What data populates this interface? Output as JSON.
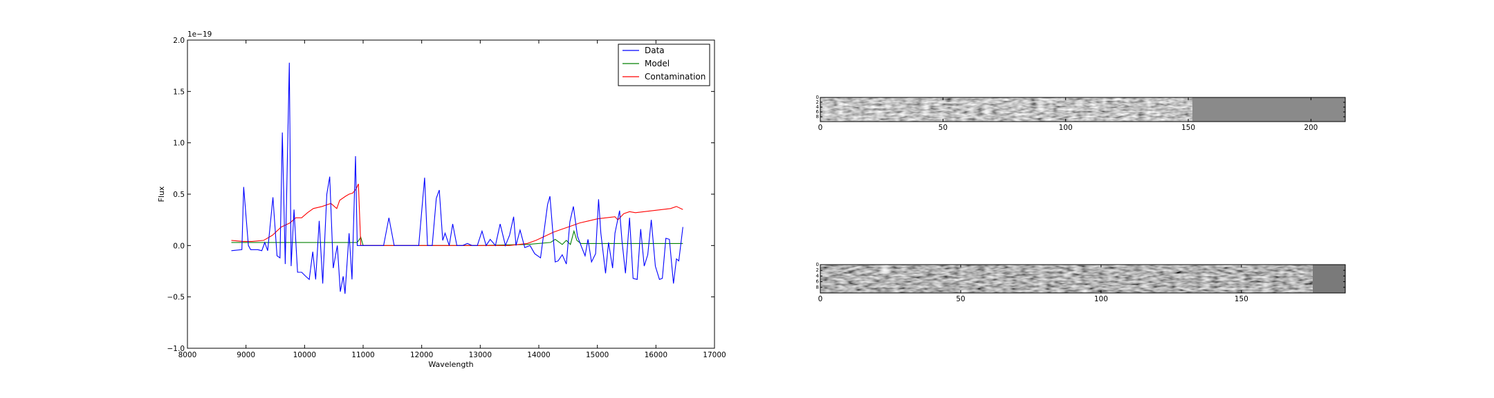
{
  "chart_data": [
    {
      "type": "line",
      "title": "",
      "xlabel": "Wavelength",
      "ylabel": "Flux",
      "y_offset_label": "1e−19",
      "xlim": [
        8000,
        17000
      ],
      "ylim": [
        -1.0,
        2.0
      ],
      "x_ticks": [
        8000,
        9000,
        10000,
        11000,
        12000,
        13000,
        14000,
        15000,
        16000,
        17000
      ],
      "y_ticks": [
        -1.0,
        -0.5,
        0.0,
        0.5,
        1.0,
        1.5,
        2.0
      ],
      "grid": false,
      "legend": "top-right",
      "series": [
        {
          "name": "Data",
          "color": "#0000ff",
          "x": [
            8750,
            8930,
            8960,
            9040,
            9080,
            9200,
            9270,
            9320,
            9370,
            9460,
            9530,
            9580,
            9620,
            9670,
            9740,
            9770,
            9820,
            9880,
            9950,
            10020,
            10080,
            10140,
            10190,
            10250,
            10310,
            10380,
            10430,
            10490,
            10560,
            10610,
            10660,
            10690,
            10760,
            10810,
            10870,
            10900,
            10950,
            11050,
            11200,
            11350,
            11440,
            11530,
            11700,
            11950,
            12050,
            12100,
            12180,
            12250,
            12300,
            12360,
            12400,
            12470,
            12530,
            12600,
            12700,
            12780,
            12860,
            12950,
            13030,
            13100,
            13170,
            13260,
            13340,
            13430,
            13500,
            13570,
            13610,
            13680,
            13760,
            13850,
            13930,
            14030,
            14150,
            14190,
            14280,
            14330,
            14400,
            14470,
            14530,
            14590,
            14660,
            14720,
            14790,
            14840,
            14900,
            14970,
            15020,
            15060,
            15140,
            15190,
            15260,
            15300,
            15380,
            15420,
            15480,
            15550,
            15610,
            15680,
            15740,
            15800,
            15860,
            15920,
            15990,
            16060,
            16110,
            16170,
            16230,
            16300,
            16350,
            16390,
            16460
          ],
          "y": [
            -0.05,
            -0.04,
            0.57,
            0.0,
            -0.04,
            -0.04,
            -0.05,
            0.03,
            -0.05,
            0.47,
            -0.1,
            -0.12,
            1.1,
            -0.18,
            1.78,
            -0.2,
            0.35,
            -0.26,
            -0.26,
            -0.3,
            -0.33,
            -0.06,
            -0.33,
            0.24,
            -0.37,
            0.5,
            0.67,
            -0.22,
            0.0,
            -0.45,
            -0.3,
            -0.47,
            0.12,
            -0.33,
            0.87,
            0.0,
            0.0,
            0.0,
            0.0,
            0.0,
            0.27,
            0.0,
            0.0,
            0.0,
            0.66,
            0.0,
            0.0,
            0.46,
            0.54,
            0.05,
            0.12,
            0.0,
            0.21,
            0.0,
            0.0,
            0.02,
            0.0,
            0.0,
            0.14,
            0.0,
            0.06,
            0.0,
            0.21,
            0.0,
            0.1,
            0.28,
            0.0,
            0.15,
            -0.02,
            0.0,
            -0.08,
            -0.12,
            0.4,
            0.48,
            -0.16,
            -0.15,
            -0.09,
            -0.18,
            0.23,
            0.38,
            0.09,
            0.0,
            -0.1,
            0.06,
            -0.16,
            -0.08,
            0.45,
            0.12,
            -0.27,
            0.03,
            -0.22,
            0.12,
            0.34,
            0.05,
            -0.27,
            0.27,
            -0.32,
            -0.33,
            0.16,
            -0.2,
            -0.09,
            0.25,
            -0.2,
            -0.33,
            -0.32,
            0.07,
            0.06,
            -0.37,
            -0.13,
            -0.15,
            0.18
          ]
        },
        {
          "name": "Model",
          "color": "#008000",
          "x": [
            8750,
            9500,
            10000,
            10500,
            10900,
            10960,
            11000,
            12000,
            13000,
            13800,
            14200,
            14280,
            14400,
            14470,
            14540,
            14600,
            14650,
            14720,
            14800,
            15500,
            16460
          ],
          "y": [
            0.03,
            0.03,
            0.03,
            0.03,
            0.03,
            0.08,
            0.0,
            0.0,
            0.0,
            0.01,
            0.03,
            0.06,
            0.01,
            0.05,
            0.01,
            0.14,
            0.05,
            0.02,
            0.02,
            0.02,
            0.02
          ],
          "note_markers_hidden": true
        },
        {
          "name": "Contamination",
          "color": "#ff0000",
          "x": [
            8750,
            8950,
            9100,
            9300,
            9450,
            9600,
            9750,
            9850,
            9950,
            10050,
            10150,
            10300,
            10450,
            10550,
            10600,
            10700,
            10760,
            10820,
            10880,
            10920,
            10960,
            11000,
            11500,
            12000,
            12500,
            13000,
            13500,
            13800,
            13950,
            14100,
            14250,
            14400,
            14550,
            14700,
            14850,
            15000,
            15150,
            15300,
            15350,
            15450,
            15550,
            15650,
            15800,
            15950,
            16100,
            16250,
            16350,
            16460
          ],
          "y": [
            0.05,
            0.04,
            0.04,
            0.05,
            0.1,
            0.18,
            0.22,
            0.27,
            0.27,
            0.32,
            0.36,
            0.38,
            0.41,
            0.36,
            0.44,
            0.48,
            0.5,
            0.51,
            0.55,
            0.6,
            0.0,
            0.0,
            0.0,
            0.0,
            0.0,
            0.0,
            0.0,
            0.02,
            0.05,
            0.09,
            0.13,
            0.16,
            0.19,
            0.22,
            0.24,
            0.26,
            0.27,
            0.28,
            0.25,
            0.31,
            0.33,
            0.32,
            0.33,
            0.34,
            0.35,
            0.36,
            0.38,
            0.35
          ]
        }
      ]
    },
    {
      "type": "heatmap",
      "title": "",
      "x_ticks": [
        0,
        50,
        100,
        150,
        200
      ],
      "y_ticks": [
        0,
        2,
        4,
        6,
        8
      ],
      "xlim": [
        0,
        214
      ],
      "ylim": [
        10,
        0
      ],
      "filled_columns": 150,
      "fill_value_gray": "#8a8a8a"
    },
    {
      "type": "heatmap",
      "title": "",
      "x_ticks": [
        0,
        50,
        100,
        150
      ],
      "y_ticks": [
        0,
        2,
        4,
        6,
        8
      ],
      "xlim": [
        0,
        187
      ],
      "ylim": [
        10,
        0
      ],
      "filled_columns": 175,
      "fill_value_gray": "#7a7a7a"
    }
  ]
}
